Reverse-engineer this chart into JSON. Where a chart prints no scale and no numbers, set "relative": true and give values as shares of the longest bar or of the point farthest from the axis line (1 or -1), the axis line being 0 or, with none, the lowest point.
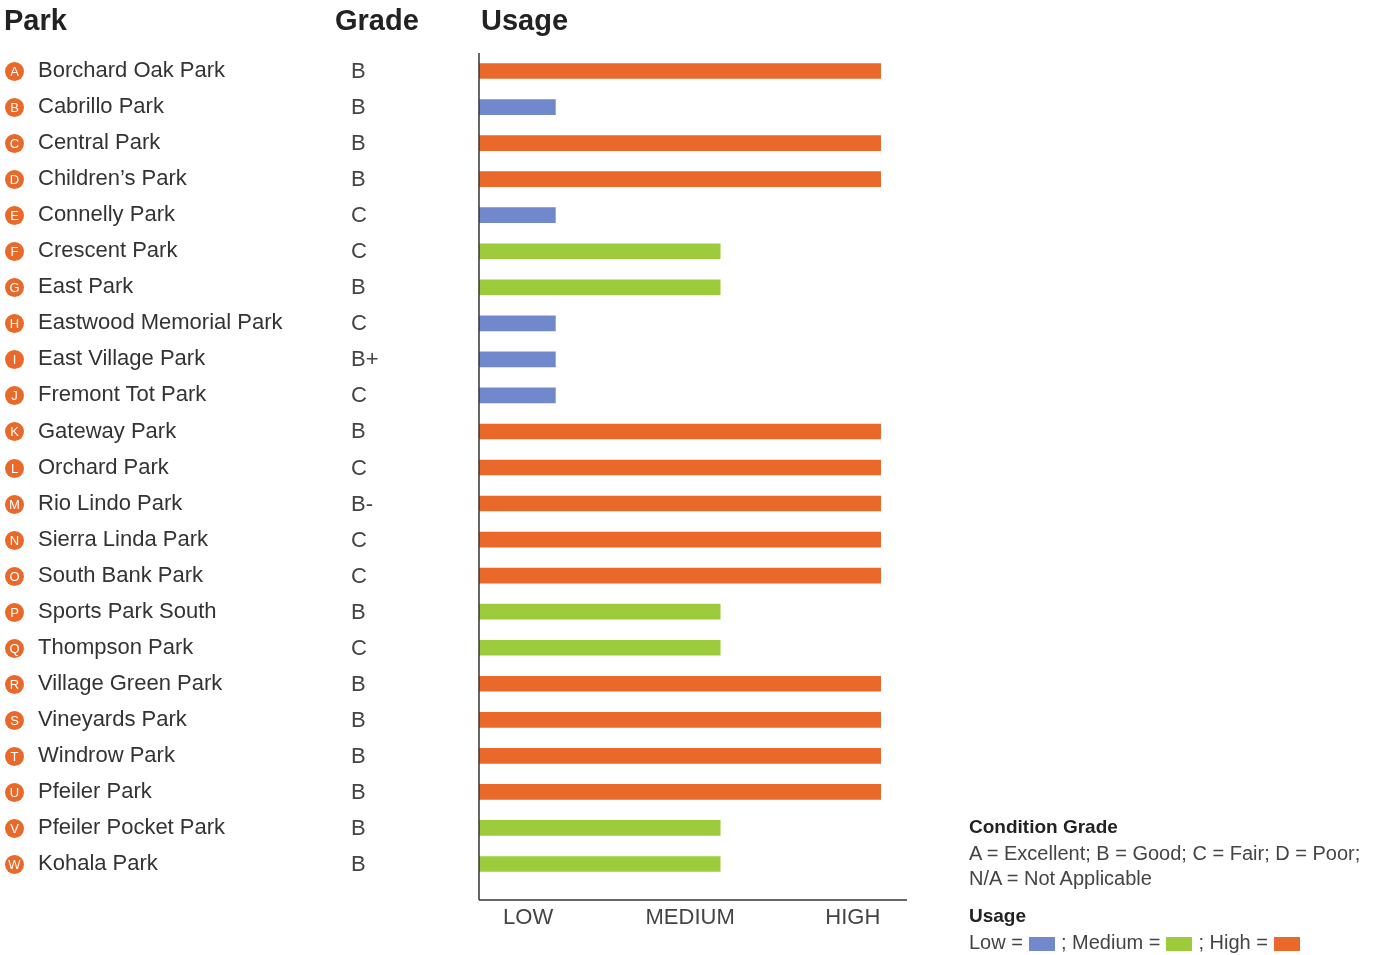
{
  "chart_data": {
    "type": "bar",
    "orientation": "horizontal",
    "stacked": true,
    "title": "Usage",
    "categories": [
      "Borchard Oak Park",
      "Cabrillo Park",
      "Central Park",
      "Children’s Park",
      "Connelly Park",
      "Crescent Park",
      "East Park",
      "Eastwood Memorial Park",
      "East Village Park",
      "Fremont Tot Park",
      "Gateway Park",
      "Orchard Park",
      "Rio Lindo Park",
      "Sierra Linda Park",
      "South Bank Park",
      "Sports Park South",
      "Thompson Park",
      "Village Green Park",
      "Vineyards Park",
      "Windrow Park",
      "Pfeiler Park",
      "Pfeiler Pocket Park",
      "Kohala Park"
    ],
    "series": [
      {
        "name": "Low =",
        "color": "#7189cc",
        "values": [
          null,
          0.19,
          null,
          null,
          0.19,
          null,
          null,
          0.19,
          0.19,
          0.19,
          null,
          null,
          null,
          null,
          null,
          null,
          null,
          null,
          null,
          null,
          null,
          null,
          null
        ]
      },
      {
        "name": "; Medium =",
        "color": "#9ccb3c",
        "values": [
          null,
          null,
          null,
          null,
          null,
          0.6,
          0.6,
          null,
          null,
          null,
          null,
          null,
          null,
          null,
          null,
          0.6,
          0.6,
          null,
          null,
          null,
          null,
          0.6,
          0.6
        ]
      },
      {
        "name": "; High =",
        "color": "#e8692a",
        "values": [
          1,
          null,
          1,
          1,
          null,
          null,
          null,
          null,
          null,
          null,
          1,
          1,
          1,
          1,
          1,
          null,
          null,
          1,
          1,
          1,
          1,
          null,
          null
        ]
      }
    ],
    "relative": true,
    "grid": false,
    "legend": "bottom right",
    "legend_title": "Usage",
    "annotations": [
      "Park",
      "Grade",
      "A",
      "B",
      "C",
      "D",
      "E",
      "F",
      "G",
      "H",
      "I",
      "J",
      "K",
      "L",
      "M",
      "N",
      "O",
      "P",
      "Q",
      "R",
      "S",
      "T",
      "U",
      "V",
      "W",
      "B",
      "B",
      "B",
      "B",
      "C",
      "C",
      "B",
      "C",
      "B+",
      "C",
      "B",
      "C",
      "B-",
      "C",
      "C",
      "B",
      "C",
      "B",
      "B",
      "B",
      "B",
      "B",
      "B",
      "LOW",
      "MEDIUM",
      "HIGH",
      "Condition Grade",
      "A = Excellent; B = Good; C = Fair; D = Poor;",
      "N/A = Not Applicable"
    ]
  }
}
